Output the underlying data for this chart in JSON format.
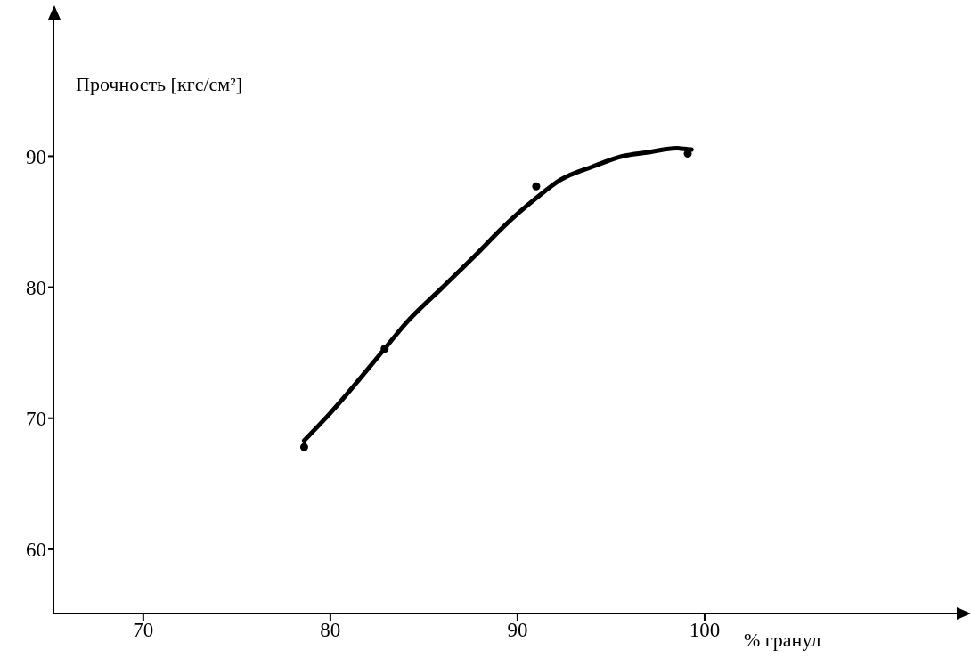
{
  "chart_data": {
    "type": "line",
    "xlabel": "% гранул",
    "ylabel": "Прочность [кгс/см²]",
    "xlim": [
      65.2,
      114
    ],
    "xticks": [
      70,
      80,
      90,
      100
    ],
    "ylim": [
      55.1,
      100.7
    ],
    "yticks": [
      60,
      70,
      80,
      90
    ],
    "series": [
      {
        "color": "#000000",
        "marker": "none",
        "x": [
          78.6,
          80,
          82.9,
          84,
          86,
          88,
          89.1,
          90,
          91,
          92.3,
          94,
          95.6,
          97,
          98.5,
          99.3
        ],
        "values": [
          68.3,
          70.4,
          75.3,
          77.2,
          80.0,
          82.8,
          84.4,
          85.6,
          86.8,
          88.2,
          89.2,
          90.0,
          90.3,
          90.6,
          90.5
        ]
      },
      {
        "type": "scatter",
        "color": "#000000",
        "marker": "circle",
        "x": [
          78.6,
          82.9,
          91.0,
          99.1
        ],
        "values": [
          67.8,
          75.3,
          87.7,
          90.2
        ]
      }
    ]
  }
}
